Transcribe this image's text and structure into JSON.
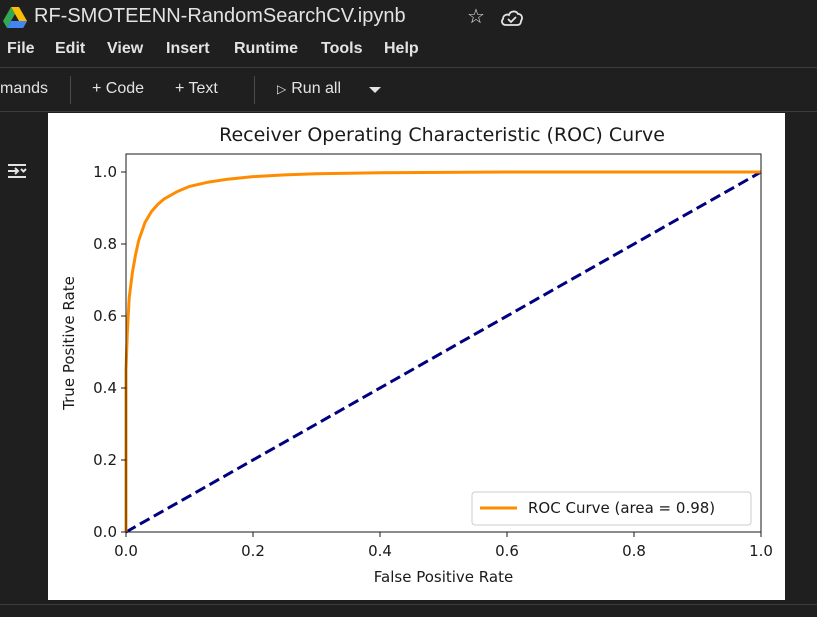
{
  "window": {
    "title": "RF-SMOTEENN-RandomSearchCV.ipynb",
    "icons": [
      "google-drive-logo",
      "star-icon",
      "cloud-saved-icon"
    ]
  },
  "menu": [
    "File",
    "Edit",
    "View",
    "Insert",
    "Runtime",
    "Tools",
    "Help"
  ],
  "toolbar": {
    "commands_label": "mands",
    "add_code_label": "+ Code",
    "add_text_label": "+ Text",
    "run_all_label": "Run all",
    "run_icon": "play-icon",
    "more_icon": "caret-down-icon"
  },
  "sidebar": {
    "icon": "collapse-output-icon"
  },
  "chart_data": {
    "type": "line",
    "title": "Receiver Operating Characteristic (ROC) Curve",
    "xlabel": "False Positive Rate",
    "ylabel": "True Positive Rate",
    "xlim": [
      0.0,
      1.0
    ],
    "ylim": [
      0.0,
      1.05
    ],
    "xticks": [
      "0.0",
      "0.2",
      "0.4",
      "0.6",
      "0.8",
      "1.0"
    ],
    "yticks": [
      "0.0",
      "0.2",
      "0.4",
      "0.6",
      "0.8",
      "1.0"
    ],
    "grid": false,
    "legend_position": "lower right",
    "series": [
      {
        "name": "ROC Curve (area = 0.98)",
        "color": "#ff8c00",
        "style": "solid",
        "x": [
          0.0,
          0.0,
          0.002,
          0.005,
          0.01,
          0.015,
          0.02,
          0.03,
          0.04,
          0.05,
          0.06,
          0.08,
          0.1,
          0.13,
          0.16,
          0.2,
          0.25,
          0.3,
          0.4,
          0.5,
          0.6,
          0.8,
          1.0
        ],
        "y": [
          0.0,
          0.45,
          0.55,
          0.65,
          0.72,
          0.77,
          0.81,
          0.86,
          0.89,
          0.91,
          0.925,
          0.945,
          0.96,
          0.972,
          0.98,
          0.987,
          0.992,
          0.995,
          0.998,
          0.999,
          1.0,
          1.0,
          1.0
        ]
      },
      {
        "color": "#000080",
        "style": "dashed",
        "x": [
          0.0,
          1.0
        ],
        "y": [
          0.0,
          1.0
        ]
      }
    ]
  }
}
